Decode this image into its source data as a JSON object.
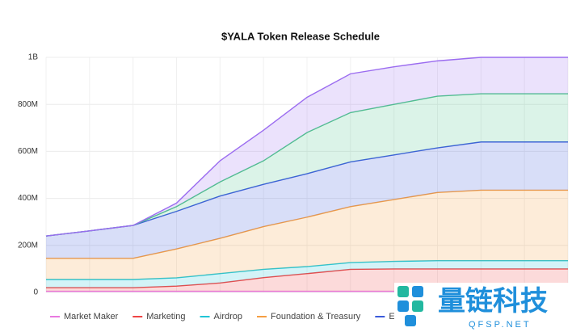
{
  "chart_data": {
    "type": "stacked-area",
    "title": "$YALA Token Release Schedule",
    "categories": [
      null,
      null,
      null,
      null,
      null,
      null,
      null,
      null,
      null,
      null,
      null,
      null,
      null
    ],
    "ylim": [
      0,
      1000000000
    ],
    "yticks": [
      0,
      {
        "value": 200000000,
        "label": "200M"
      },
      {
        "value": 400000000,
        "label": "400M"
      },
      {
        "value": 600000000,
        "label": "600M"
      },
      {
        "value": 800000000,
        "label": "800M"
      },
      {
        "value": 1000000000,
        "label": "1B"
      }
    ],
    "grid": true,
    "legend": "bottom",
    "series": [
      {
        "name": "Market Maker",
        "color": "#e879e0",
        "values": [
          5000000,
          5000000,
          5000000,
          5000000,
          5000000,
          5000000,
          5000000,
          5000000,
          5000000,
          5000000,
          5000000,
          5000000,
          5000000
        ]
      },
      {
        "name": "Marketing",
        "color": "#ef4444",
        "values": [
          15000000,
          15000000,
          15000000,
          22000000,
          35000000,
          58000000,
          75000000,
          93000000,
          95000000,
          95000000,
          95000000,
          95000000,
          95000000
        ]
      },
      {
        "name": "Airdrop",
        "color": "#22c5d6",
        "values": [
          35000000,
          35000000,
          35000000,
          35000000,
          40000000,
          35000000,
          30000000,
          29000000,
          32000000,
          35000000,
          35000000,
          35000000,
          35000000
        ]
      },
      {
        "name": "Foundation & Treasury",
        "color": "#f59e42",
        "values": [
          90000000,
          90000000,
          90000000,
          123000000,
          150000000,
          182000000,
          210000000,
          238000000,
          263000000,
          290000000,
          300000000,
          300000000,
          300000000
        ]
      },
      {
        "name": "Ecosystem",
        "color": "#3b5bdb",
        "values": [
          95000000,
          117000000,
          140000000,
          160000000,
          180000000,
          180000000,
          185000000,
          190000000,
          190000000,
          190000000,
          205000000,
          205000000,
          205000000
        ]
      },
      {
        "color": "#4cc38a",
        "values": [
          0,
          0,
          0,
          20000000,
          60000000,
          100000000,
          175000000,
          210000000,
          215000000,
          220000000,
          205000000,
          205000000,
          205000000
        ]
      },
      {
        "color": "#9b6cf0",
        "values": [
          0,
          0,
          0,
          15000000,
          90000000,
          130000000,
          150000000,
          165000000,
          160000000,
          150000000,
          155000000,
          155000000,
          155000000
        ]
      }
    ]
  },
  "watermark": {
    "title": "量链科技",
    "subtitle": "QFSP.NET"
  }
}
